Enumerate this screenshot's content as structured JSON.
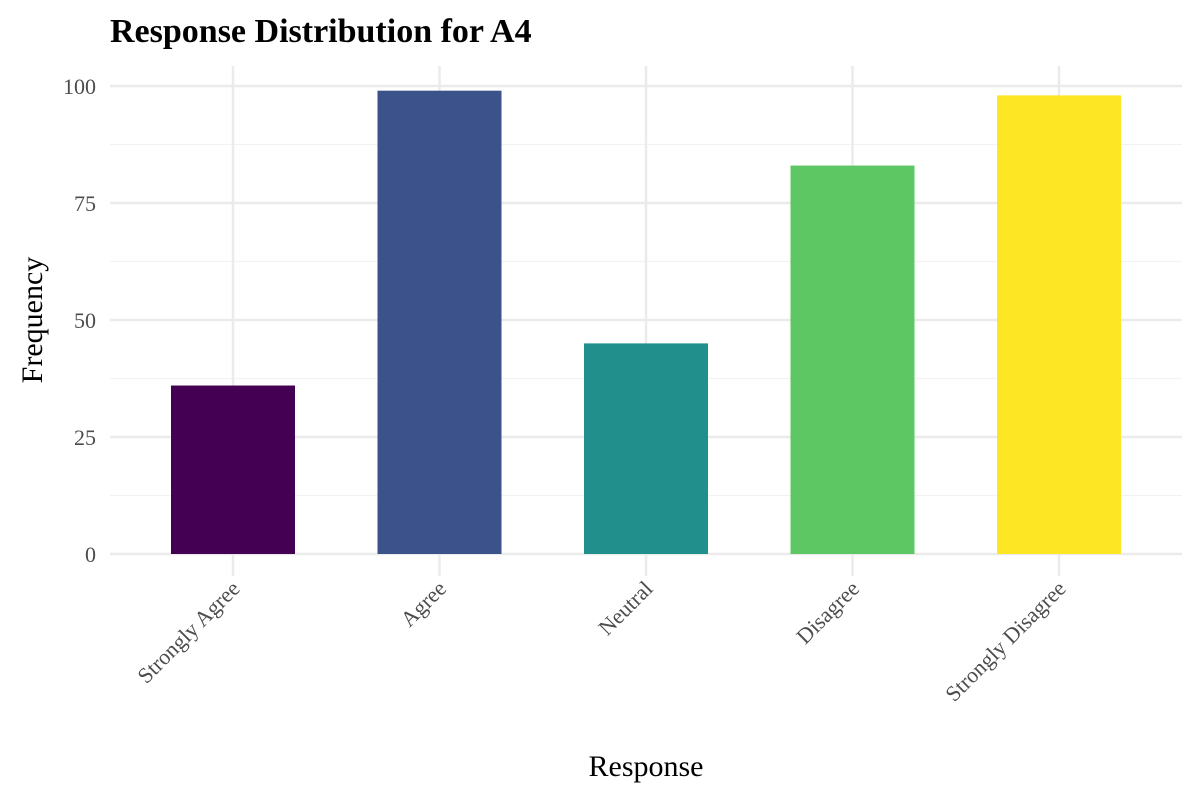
{
  "chart_data": {
    "type": "bar",
    "title": "Response Distribution for A4",
    "xlabel": "Response",
    "ylabel": "Frequency",
    "categories": [
      "Strongly Agree",
      "Agree",
      "Neutral",
      "Disagree",
      "Strongly Disagree"
    ],
    "values": [
      36,
      99,
      45,
      83,
      98
    ],
    "colors": [
      "#440154",
      "#3B528B",
      "#21908C",
      "#5DC863",
      "#FDE725"
    ],
    "ylim": [
      0,
      104
    ],
    "yticks": [
      0,
      25,
      50,
      75,
      100
    ],
    "ytick_labels": [
      "0",
      "25",
      "50",
      "75",
      "100"
    ],
    "grid": true,
    "legend": "none"
  }
}
